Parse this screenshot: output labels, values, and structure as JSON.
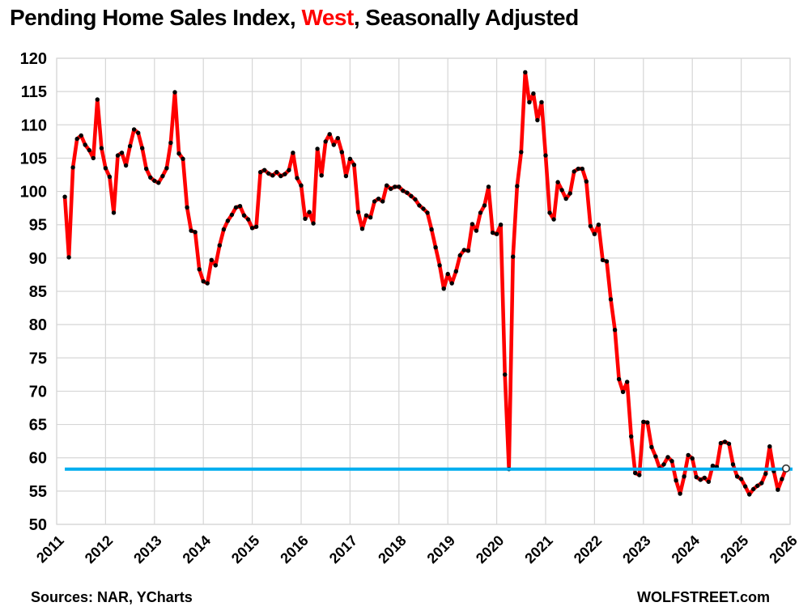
{
  "title": {
    "prefix": "Pending Home Sales Index, ",
    "highlight": "West",
    "suffix": ", Seasonally Adjusted",
    "highlight_color": "#FF0000",
    "text_color": "#000000"
  },
  "footer": {
    "sources": "Sources: NAR, YCharts",
    "brand": "WOLFSTREET.com"
  },
  "chart_data": {
    "type": "line",
    "title": "Pending Home Sales Index, West, Seasonally Adjusted",
    "x_ticks": [
      "2011",
      "2012",
      "2013",
      "2014",
      "2015",
      "2016",
      "2017",
      "2018",
      "2019",
      "2020",
      "2021",
      "2022",
      "2023",
      "2024",
      "2025",
      "2026"
    ],
    "ylim": [
      50,
      120
    ],
    "y_tick_step": 5,
    "grid": true,
    "legend": "none",
    "frequency": "monthly",
    "start": {
      "year": 2011,
      "month": 3
    },
    "series": [
      {
        "name": "Pending Home Sales Index, West, seasonally adjusted",
        "color": "#FF0000",
        "marker_color": "#000000",
        "values": [
          99.2,
          90.1,
          103.6,
          107.9,
          108.4,
          107.0,
          106.2,
          105.0,
          113.8,
          106.5,
          103.5,
          102.2,
          96.8,
          105.4,
          105.8,
          103.9,
          106.8,
          109.3,
          108.8,
          106.5,
          103.4,
          102.1,
          101.6,
          101.3,
          102.3,
          103.5,
          107.3,
          114.9,
          105.7,
          104.9,
          97.6,
          94.1,
          93.9,
          88.3,
          86.5,
          86.2,
          89.7,
          88.9,
          91.9,
          94.3,
          95.6,
          96.5,
          97.6,
          97.8,
          96.4,
          95.8,
          94.5,
          94.7,
          102.9,
          103.2,
          102.7,
          102.4,
          102.9,
          102.3,
          102.6,
          103.2,
          105.8,
          102.0,
          100.9,
          95.9,
          96.9,
          95.2,
          106.4,
          102.4,
          107.5,
          108.6,
          107.0,
          108.0,
          105.9,
          102.3,
          104.9,
          104.0,
          96.9,
          94.4,
          96.4,
          96.1,
          98.5,
          98.9,
          98.5,
          100.9,
          100.4,
          100.7,
          100.7,
          100.1,
          99.8,
          99.3,
          98.8,
          97.9,
          97.4,
          96.8,
          94.3,
          91.6,
          88.9,
          85.4,
          87.6,
          86.2,
          88.0,
          90.4,
          91.2,
          91.1,
          95.1,
          94.1,
          96.8,
          97.9,
          100.7,
          93.8,
          93.6,
          95.0,
          72.5,
          58.3,
          90.2,
          100.8,
          105.9,
          117.9,
          113.4,
          114.7,
          110.7,
          113.4,
          105.4,
          96.8,
          95.8,
          101.4,
          100.2,
          98.9,
          99.7,
          103.0,
          103.4,
          103.4,
          101.5,
          94.8,
          93.6,
          95.0,
          89.7,
          89.5,
          83.8,
          79.2,
          71.8,
          69.9,
          71.4,
          63.2,
          57.7,
          57.4,
          65.4,
          65.3,
          61.6,
          60.2,
          58.4,
          59.0,
          60.1,
          59.5,
          56.6,
          54.6,
          57.2,
          60.4,
          59.9,
          57.1,
          56.7,
          57.0,
          56.4,
          58.8,
          58.6,
          62.2,
          62.4,
          62.1,
          59.0,
          57.2,
          56.8,
          55.7,
          54.5,
          55.3,
          55.8,
          56.2,
          57.6,
          61.7,
          58.0,
          55.2,
          56.8,
          58.4
        ]
      }
    ],
    "reference_line": {
      "value": 58.3,
      "color": "#00AEEF"
    },
    "last_point_marker": "open-circle",
    "grid_color": "#D6D6D6"
  }
}
